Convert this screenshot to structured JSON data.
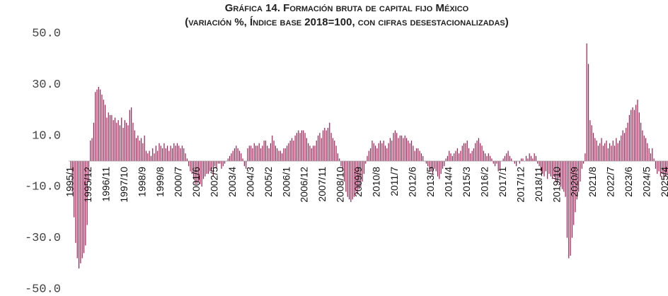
{
  "chart_data": {
    "type": "bar",
    "title": "Gráfica 14. Formación bruta de capital fijo México",
    "subtitle": "(variación %, Índice base 2018=100, con cifras desestacionalizadas)",
    "color": "#a3194e",
    "ylim": [
      -50,
      50
    ],
    "yticks": [
      {
        "value": 50,
        "label": "50.0"
      },
      {
        "value": 30,
        "label": "30.0"
      },
      {
        "value": 10,
        "label": "10.0"
      },
      {
        "value": -10,
        "label": "-10.0"
      },
      {
        "value": -30,
        "label": "-30.0"
      },
      {
        "value": -50,
        "label": "-50.0"
      }
    ],
    "categories": [
      "1995/1",
      null,
      null,
      null,
      null,
      null,
      null,
      null,
      null,
      null,
      null,
      "1995/12",
      null,
      null,
      null,
      null,
      null,
      null,
      null,
      null,
      null,
      null,
      "1996/11",
      null,
      null,
      null,
      null,
      null,
      null,
      null,
      null,
      null,
      null,
      "1997/10",
      null,
      null,
      null,
      null,
      null,
      null,
      null,
      null,
      null,
      null,
      "1998/9",
      null,
      null,
      null,
      null,
      null,
      null,
      null,
      null,
      null,
      null,
      "1999/8",
      null,
      null,
      null,
      null,
      null,
      null,
      null,
      null,
      null,
      null,
      "2000/7",
      null,
      null,
      null,
      null,
      null,
      null,
      null,
      null,
      null,
      null,
      "2001/6",
      null,
      null,
      null,
      null,
      null,
      null,
      null,
      null,
      null,
      null,
      "2002/5",
      null,
      null,
      null,
      null,
      null,
      null,
      null,
      null,
      null,
      null,
      "2003/4",
      null,
      null,
      null,
      null,
      null,
      null,
      null,
      null,
      null,
      null,
      "2004/3",
      null,
      null,
      null,
      null,
      null,
      null,
      null,
      null,
      null,
      null,
      "2005/2",
      null,
      null,
      null,
      null,
      null,
      null,
      null,
      null,
      null,
      null,
      "2006/1",
      null,
      null,
      null,
      null,
      null,
      null,
      null,
      null,
      null,
      null,
      "2006/12",
      null,
      null,
      null,
      null,
      null,
      null,
      null,
      null,
      null,
      null,
      "2007/11",
      null,
      null,
      null,
      null,
      null,
      null,
      null,
      null,
      null,
      null,
      "2008/10",
      null,
      null,
      null,
      null,
      null,
      null,
      null,
      null,
      null,
      null,
      "2009/9",
      null,
      null,
      null,
      null,
      null,
      null,
      null,
      null,
      null,
      null,
      "2010/8",
      null,
      null,
      null,
      null,
      null,
      null,
      null,
      null,
      null,
      null,
      "2011/7",
      null,
      null,
      null,
      null,
      null,
      null,
      null,
      null,
      null,
      null,
      "2012/6",
      null,
      null,
      null,
      null,
      null,
      null,
      null,
      null,
      null,
      null,
      "2013/5",
      null,
      null,
      null,
      null,
      null,
      null,
      null,
      null,
      null,
      null,
      "2014/4",
      null,
      null,
      null,
      null,
      null,
      null,
      null,
      null,
      null,
      null,
      "2015/3",
      null,
      null,
      null,
      null,
      null,
      null,
      null,
      null,
      null,
      null,
      "2016/2",
      null,
      null,
      null,
      null,
      null,
      null,
      null,
      null,
      null,
      null,
      "2017/1",
      null,
      null,
      null,
      null,
      null,
      null,
      null,
      null,
      null,
      null,
      "2017/12",
      null,
      null,
      null,
      null,
      null,
      null,
      null,
      null,
      null,
      null,
      "2018/11",
      null,
      null,
      null,
      null,
      null,
      null,
      null,
      null,
      null,
      null,
      "2019/10",
      null,
      null,
      null,
      null,
      null,
      null,
      null,
      null,
      null,
      null,
      "2020/9",
      null,
      null,
      null,
      null,
      null,
      null,
      null,
      null,
      null,
      null,
      "2021/8",
      null,
      null,
      null,
      null,
      null,
      null,
      null,
      null,
      null,
      null,
      "2022/7",
      null,
      null,
      null,
      null,
      null,
      null,
      null,
      null,
      null,
      null,
      "2023/6",
      null,
      null,
      null,
      null,
      null,
      null,
      null,
      null,
      null,
      null,
      "2024/5",
      null,
      null,
      null,
      null,
      null,
      null,
      null,
      null,
      null,
      null,
      "2025/4",
      null,
      null
    ],
    "values": [
      -3,
      -12,
      -22,
      -32,
      -38,
      -42,
      -40,
      -38,
      -36,
      -33,
      -25,
      -8,
      8,
      9,
      15,
      27,
      28,
      29,
      28,
      26,
      24,
      22,
      17,
      19,
      18,
      18,
      16,
      17,
      15,
      16,
      14,
      17,
      13,
      16,
      15,
      14,
      20,
      21,
      15,
      12,
      9,
      10,
      8,
      9,
      7,
      10,
      4,
      3,
      4,
      2,
      5,
      3,
      6,
      4,
      7,
      6,
      5,
      7,
      5,
      6,
      4,
      6,
      5,
      7,
      6,
      7,
      6,
      5,
      6,
      5,
      3,
      1,
      -2,
      -4,
      -5,
      -7,
      -9,
      -9,
      -8,
      -9,
      -10,
      -7,
      -6,
      -5,
      -5,
      -4,
      -3,
      -6,
      -2,
      -3,
      -1,
      -1,
      -3,
      -2,
      -1,
      0,
      1,
      2,
      3,
      4,
      5,
      6,
      5,
      4,
      3,
      1,
      -2,
      -3,
      5,
      6,
      6,
      5,
      7,
      6,
      6,
      7,
      5,
      6,
      8,
      8,
      6,
      5,
      7,
      10,
      8,
      6,
      5,
      4,
      4,
      3,
      5,
      5,
      6,
      7,
      8,
      9,
      8,
      10,
      11,
      12,
      11,
      12,
      12,
      11,
      9,
      7,
      6,
      5,
      6,
      6,
      8,
      10,
      11,
      9,
      12,
      13,
      12,
      13,
      15,
      11,
      9,
      8,
      6,
      3,
      1,
      -2,
      -4,
      -8,
      -12,
      -14,
      -15,
      -16,
      -15,
      -14,
      -12,
      -13,
      -11,
      -10,
      -8,
      -5,
      -1,
      2,
      4,
      5,
      8,
      7,
      6,
      5,
      7,
      8,
      7,
      8,
      6,
      5,
      7,
      9,
      8,
      11,
      12,
      11,
      9,
      10,
      10,
      9,
      10,
      9,
      8,
      7,
      8,
      6,
      4,
      5,
      5,
      4,
      3,
      2,
      0,
      -1,
      -2,
      -3,
      -4,
      -5,
      -3,
      -4,
      -6,
      -7,
      -5,
      -3,
      -2,
      1,
      2,
      4,
      3,
      2,
      3,
      4,
      5,
      3,
      4,
      6,
      7,
      7,
      8,
      5,
      3,
      4,
      5,
      7,
      8,
      9,
      7,
      6,
      4,
      3,
      2,
      3,
      2,
      1,
      -1,
      -2,
      -1,
      -4,
      -3,
      0,
      1,
      2,
      3,
      4,
      2,
      1,
      0,
      -1,
      -2,
      0,
      -1,
      1,
      1,
      0,
      2,
      1,
      3,
      2,
      1,
      3,
      2,
      -1,
      -2,
      -4,
      -5,
      -6,
      -4,
      -7,
      -5,
      -6,
      -7,
      -6,
      -8,
      -9,
      -7,
      -10,
      -11,
      -12,
      -14,
      -30,
      -38,
      -37,
      -30,
      -25,
      -20,
      -15,
      -12,
      -8,
      -3,
      -1,
      3,
      46,
      38,
      16,
      14,
      11,
      9,
      8,
      6,
      7,
      9,
      6,
      7,
      8,
      5,
      7,
      6,
      8,
      6,
      9,
      7,
      8,
      10,
      12,
      11,
      13,
      15,
      18,
      20,
      21,
      20,
      22,
      24,
      19,
      15,
      12,
      10,
      9,
      7,
      5,
      3,
      5,
      1,
      -3,
      -5,
      -4,
      -6,
      -5,
      -7,
      -6,
      -5,
      -7
    ]
  }
}
